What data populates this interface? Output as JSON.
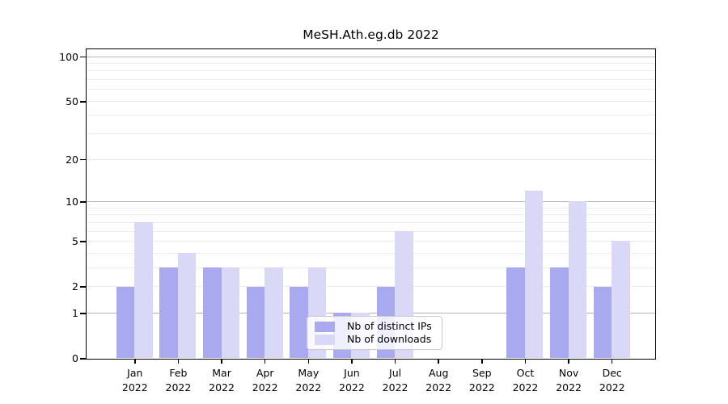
{
  "chart_data": {
    "type": "bar",
    "title": "MeSH.Ath.eg.db 2022",
    "categories": [
      "Jan",
      "Feb",
      "Mar",
      "Apr",
      "May",
      "Jun",
      "Jul",
      "Aug",
      "Sep",
      "Oct",
      "Nov",
      "Dec"
    ],
    "year": "2022",
    "series": [
      {
        "name": "Nb of distinct IPs",
        "color": "#a9a9f0",
        "values": [
          2,
          3,
          3,
          2,
          2,
          1,
          2,
          0,
          0,
          3,
          3,
          2
        ]
      },
      {
        "name": "Nb of downloads",
        "color": "#d9d9f7",
        "values": [
          7,
          4,
          3,
          3,
          3,
          1,
          6,
          0,
          0,
          12,
          10,
          5
        ]
      }
    ],
    "yscale": "log1p",
    "ylim": [
      0,
      100
    ],
    "yticks": [
      0,
      1,
      2,
      5,
      10,
      20,
      50,
      100
    ],
    "grid": "horizontal",
    "grid_major_color": "#b5b5b5",
    "grid_minor_color": "#ececec",
    "legend_position": "bottom-center"
  }
}
